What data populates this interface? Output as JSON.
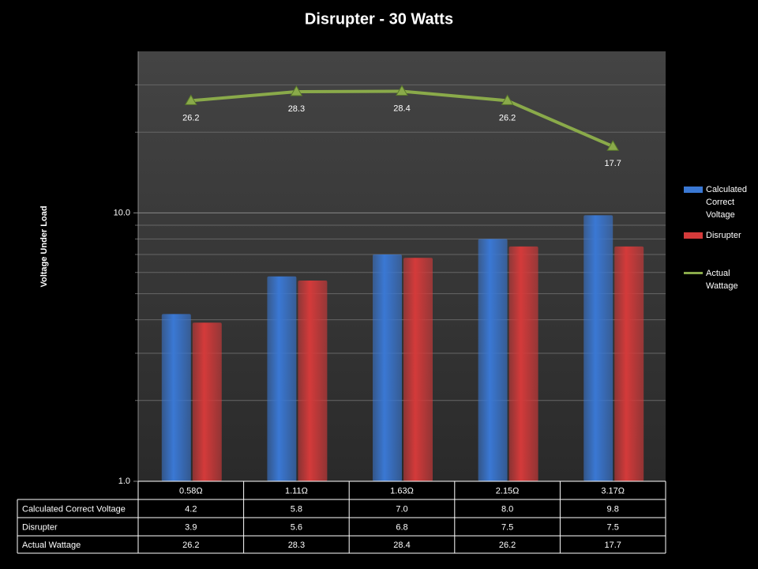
{
  "chart_data": {
    "type": "bar-line",
    "title": "Disrupter - 30 Watts",
    "y_label": "Voltage Under Load",
    "categories": [
      "0.58Ω",
      "1.11Ω",
      "1.63Ω",
      "2.15Ω",
      "3.17Ω"
    ],
    "series": [
      {
        "name": "Calculated Correct Voltage",
        "type": "bar",
        "color": "#3a78d4",
        "values": [
          4.2,
          5.8,
          7.0,
          8.0,
          9.8
        ],
        "value_labels": [
          "4.2",
          "5.8",
          "7.0",
          "8.0",
          "9.8"
        ]
      },
      {
        "name": "Disrupter",
        "type": "bar",
        "color": "#d43a3a",
        "values": [
          3.9,
          5.6,
          6.8,
          7.5,
          7.5
        ],
        "value_labels": [
          "3.9",
          "5.6",
          "6.8",
          "7.5",
          "7.5"
        ]
      },
      {
        "name": "Actual Wattage",
        "type": "line",
        "color": "#8aaa4a",
        "values": [
          26.2,
          28.3,
          28.4,
          26.2,
          17.7
        ]
      }
    ],
    "log_scale": true,
    "ylim": [
      1,
      40
    ],
    "yticks": [
      {
        "value": 1,
        "label": "1.0"
      },
      {
        "value": 10,
        "label": "10.0"
      }
    ],
    "yminor": [
      2,
      3,
      4,
      5,
      6,
      7,
      8,
      9,
      20,
      30
    ],
    "grid": true,
    "legend": "right"
  }
}
